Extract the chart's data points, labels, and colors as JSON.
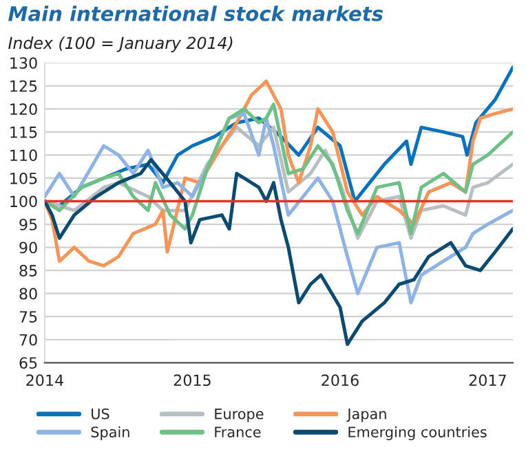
{
  "chart_data": {
    "type": "line",
    "title": "Main international stock markets",
    "subtitle": "Index (100 = January 2014)",
    "xlim": [
      2014,
      2017.17
    ],
    "xticks": [
      2014,
      2015,
      2016,
      2017
    ],
    "ylim": [
      65,
      130
    ],
    "yticks": [
      65,
      70,
      75,
      80,
      85,
      90,
      95,
      100,
      105,
      110,
      115,
      120,
      125,
      130
    ],
    "grid": "y",
    "legend": "bottom",
    "line_style": "solid",
    "marker": "none",
    "ref_lines": [
      {
        "axis": "y",
        "value": 100,
        "color": "#e2342b"
      }
    ],
    "series": [
      {
        "name": "US",
        "color": "#0a72ba",
        "x": [
          2014,
          2014.1,
          2014.25,
          2014.4,
          2014.55,
          2014.7,
          2014.8,
          2014.9,
          2015.0,
          2015.15,
          2015.3,
          2015.45,
          2015.6,
          2015.72,
          2015.85,
          2016.0,
          2016.1,
          2016.2,
          2016.3,
          2016.45,
          2016.48,
          2016.55,
          2016.7,
          2016.83,
          2016.86,
          2016.92,
          2017.05,
          2017.17
        ],
        "values": [
          100,
          99,
          103,
          105,
          107,
          108,
          104,
          110,
          112,
          114,
          117,
          118,
          114,
          110,
          116,
          112,
          100,
          104,
          108,
          113,
          108,
          116,
          115,
          114,
          110,
          117,
          122,
          129
        ]
      },
      {
        "name": "Europe",
        "color": "#b8bfc0",
        "x": [
          2014,
          2014.2,
          2014.4,
          2014.5,
          2014.7,
          2014.8,
          2014.95,
          2015.1,
          2015.3,
          2015.45,
          2015.55,
          2015.65,
          2015.8,
          2015.9,
          2016.0,
          2016.12,
          2016.25,
          2016.4,
          2016.48,
          2016.55,
          2016.7,
          2016.85,
          2016.9,
          2017.0,
          2017.17
        ],
        "values": [
          100,
          98,
          103,
          104,
          101,
          98,
          98,
          108,
          116,
          112,
          116,
          102,
          106,
          111,
          104,
          92,
          100,
          101,
          92,
          98,
          99,
          97,
          103,
          104,
          108
        ]
      },
      {
        "name": "Japan",
        "color": "#f4965a",
        "x": [
          2014,
          2014.05,
          2014.1,
          2014.2,
          2014.3,
          2014.4,
          2014.5,
          2014.6,
          2014.75,
          2014.8,
          2014.83,
          2014.95,
          2015.05,
          2015.2,
          2015.3,
          2015.4,
          2015.5,
          2015.6,
          2015.65,
          2015.72,
          2015.8,
          2015.85,
          2015.95,
          2016.05,
          2016.15,
          2016.25,
          2016.4,
          2016.5,
          2016.6,
          2016.75,
          2016.85,
          2016.9,
          2016.95,
          2017.05,
          2017.17
        ],
        "values": [
          100,
          96,
          87,
          90,
          87,
          86,
          88,
          93,
          95,
          98,
          89,
          105,
          104,
          112,
          117,
          123,
          126,
          120,
          110,
          104,
          112,
          120,
          115,
          102,
          97,
          101,
          98,
          95,
          102,
          104,
          102,
          113,
          118,
          119,
          120
        ]
      },
      {
        "name": "Spain",
        "color": "#8fb4e3",
        "x": [
          2014,
          2014.1,
          2014.2,
          2014.4,
          2014.5,
          2014.6,
          2014.7,
          2014.8,
          2014.9,
          2015.0,
          2015.1,
          2015.25,
          2015.35,
          2015.45,
          2015.5,
          2015.55,
          2015.65,
          2015.75,
          2015.85,
          2015.95,
          2016.05,
          2016.12,
          2016.25,
          2016.4,
          2016.48,
          2016.55,
          2016.7,
          2016.85,
          2016.9,
          2017.0,
          2017.17
        ],
        "values": [
          101,
          106,
          101,
          112,
          110,
          106,
          111,
          103,
          104,
          101,
          107,
          118,
          119,
          110,
          118,
          112,
          97,
          101,
          105,
          100,
          88,
          80,
          90,
          91,
          78,
          84,
          87,
          90,
          93,
          95,
          98
        ]
      },
      {
        "name": "France",
        "color": "#6fbf87",
        "x": [
          2014,
          2014.1,
          2014.25,
          2014.4,
          2014.5,
          2014.6,
          2014.7,
          2014.75,
          2014.85,
          2014.95,
          2015.0,
          2015.1,
          2015.25,
          2015.35,
          2015.45,
          2015.5,
          2015.55,
          2015.65,
          2015.75,
          2015.85,
          2015.95,
          2016.05,
          2016.12,
          2016.25,
          2016.4,
          2016.48,
          2016.55,
          2016.7,
          2016.85,
          2016.9,
          2017.0,
          2017.17
        ],
        "values": [
          100,
          98,
          103,
          105,
          106,
          101,
          98,
          104,
          97,
          94,
          97,
          107,
          118,
          120,
          117,
          118,
          121,
          106,
          107,
          112,
          108,
          98,
          93,
          103,
          104,
          93,
          103,
          106,
          102,
          108,
          110,
          115
        ]
      },
      {
        "name": "Emerging countries",
        "color": "#0d4a70",
        "x": [
          2014,
          2014.05,
          2014.1,
          2014.2,
          2014.35,
          2014.5,
          2014.65,
          2014.72,
          2014.85,
          2014.95,
          2014.99,
          2015.05,
          2015.2,
          2015.25,
          2015.3,
          2015.45,
          2015.5,
          2015.55,
          2015.6,
          2015.65,
          2015.72,
          2015.8,
          2015.87,
          2016.0,
          2016.05,
          2016.15,
          2016.3,
          2016.4,
          2016.5,
          2016.6,
          2016.75,
          2016.85,
          2016.95,
          2017.05,
          2017.17
        ],
        "values": [
          100,
          97,
          92,
          97,
          101,
          104,
          106,
          109,
          104,
          100,
          91,
          96,
          97,
          94,
          106,
          103,
          100,
          104,
          96,
          90,
          78,
          82,
          84,
          77,
          69,
          74,
          78,
          82,
          83,
          88,
          91,
          86,
          85,
          89,
          94
        ]
      }
    ]
  }
}
